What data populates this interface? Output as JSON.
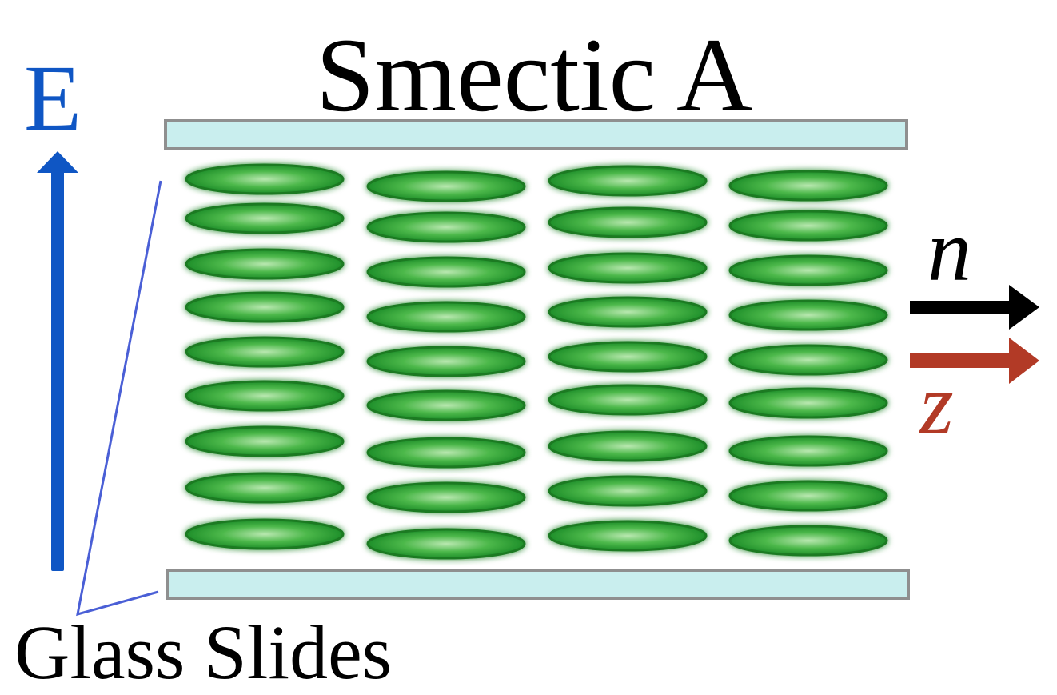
{
  "title": "Smectic A",
  "field_label": "E",
  "slides_label": "Glass Slides",
  "director_label": "n",
  "layer_normal_label": "z",
  "colors": {
    "field_arrow": "#0f56c4",
    "director_arrow": "#000000",
    "normal_arrow": "#b23a26",
    "molecule_fill": "#2ea33a",
    "molecule_edge": "#1a7a22",
    "glass_fill": "#c9eeee",
    "glass_edge": "#8f8f8f",
    "pointer_line": "#4a5fd6"
  },
  "molecule_grid": {
    "columns": 4,
    "rows": 9
  }
}
